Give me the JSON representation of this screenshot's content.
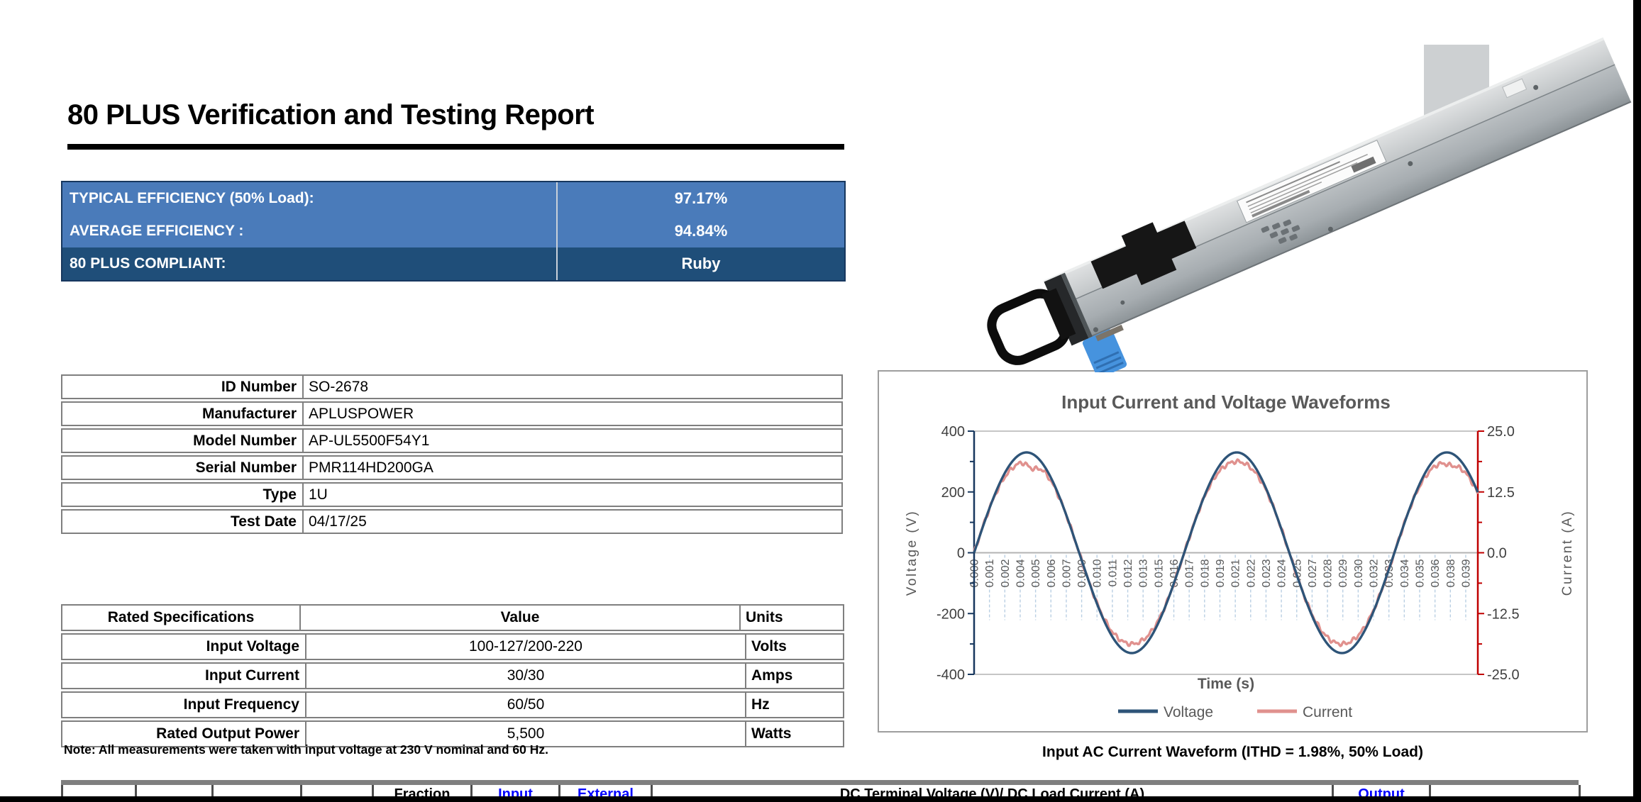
{
  "report": {
    "title": "80 PLUS Verification and Testing Report",
    "note": "Note: All measurements were taken with input voltage at 230 V nominal and 60 Hz.",
    "chart_caption": "Input AC Current Waveform (ITHD = 1.98%, 50% Load)"
  },
  "efficiency_summary": {
    "rows": [
      {
        "label": "TYPICAL EFFICIENCY (50% Load):",
        "value": "97.17%",
        "style": "light"
      },
      {
        "label": "AVERAGE EFFICIENCY :",
        "value": "94.84%",
        "style": "light"
      },
      {
        "label": "80 PLUS COMPLIANT:",
        "value": "Ruby",
        "style": "dark"
      }
    ]
  },
  "unit_info": {
    "rows": [
      {
        "label": "ID Number",
        "value": "SO-2678"
      },
      {
        "label": "Manufacturer",
        "value": "APLUSPOWER"
      },
      {
        "label": "Model Number",
        "value": "AP-UL5500F54Y1"
      },
      {
        "label": "Serial Number",
        "value": "PMR114HD200GA"
      },
      {
        "label": "Type",
        "value": "1U"
      },
      {
        "label": "Test Date",
        "value": "04/17/25"
      }
    ]
  },
  "rated_specs": {
    "headers": [
      "Rated Specifications",
      "Value",
      "Units"
    ],
    "rows": [
      {
        "name": "Input Voltage",
        "value": "100-127/200-220",
        "units": "Volts"
      },
      {
        "name": "Input Current",
        "value": "30/30",
        "units": "Amps"
      },
      {
        "name": "Input Frequency",
        "value": "60/50",
        "units": "Hz"
      },
      {
        "name": "Rated Output Power",
        "value": "5,500",
        "units": "Watts"
      }
    ]
  },
  "bottom_table": {
    "cells": [
      {
        "label": "",
        "blue": false
      },
      {
        "label": "",
        "blue": false
      },
      {
        "label": "",
        "blue": false
      },
      {
        "label": "",
        "blue": false
      },
      {
        "label": "Fraction",
        "blue": false
      },
      {
        "label": "Input",
        "blue": true
      },
      {
        "label": "External",
        "blue": true
      },
      {
        "label": "DC Terminal Voltage (V)/ DC Load Current (A)",
        "blue": false
      },
      {
        "label": "Output",
        "blue": true
      },
      {
        "label": "",
        "blue": false
      }
    ]
  },
  "chart_data": {
    "type": "line",
    "title": "Input Current and Voltage Waveforms",
    "xlabel": "Time (s)",
    "x_range_s": [
      0,
      0.04
    ],
    "x_tick_labels": [
      "0.000",
      "0.001",
      "0.002",
      "0.004",
      "0.005",
      "0.006",
      "0.007",
      "0.009",
      "0.010",
      "0.011",
      "0.012",
      "0.013",
      "0.015",
      "0.016",
      "0.017",
      "0.018",
      "0.019",
      "0.021",
      "0.022",
      "0.023",
      "0.024",
      "0.025",
      "0.027",
      "0.028",
      "0.029",
      "0.030",
      "0.032",
      "0.033",
      "0.034",
      "0.035",
      "0.036",
      "0.038",
      "0.039"
    ],
    "left_axis": {
      "label": "Voltage (V)",
      "range": [
        -400,
        400
      ],
      "ticks": [
        "400",
        "200",
        "0",
        "-200",
        "-400"
      ]
    },
    "right_axis": {
      "label": "Current (A)",
      "range": [
        -25.0,
        25.0
      ],
      "ticks": [
        "25.0",
        "12.5",
        "0.0",
        "-12.5",
        "-25.0"
      ]
    },
    "series": [
      {
        "name": "Voltage",
        "axis": "left",
        "waveform": "sine",
        "amplitude": 330,
        "frequency_hz": 60,
        "color": "#2e5478"
      },
      {
        "name": "Current",
        "axis": "right",
        "waveform": "sine_distorted",
        "amplitude": 19.3,
        "frequency_hz": 60,
        "ithd_pct": 1.98,
        "color": "#e0918e"
      }
    ],
    "legend": [
      "Voltage",
      "Current"
    ],
    "legend_position": "bottom",
    "grid": "horizontal-major"
  },
  "colors": {
    "row_light_blue": "#4a7bba",
    "row_dark_blue": "#1f4e79",
    "voltage_line": "#2e5478",
    "current_line": "#e0918e",
    "left_axis_line": "#17375e",
    "right_axis_line": "#c00000",
    "link_blue": "#0000ff",
    "chart_text_gray": "#595959"
  }
}
